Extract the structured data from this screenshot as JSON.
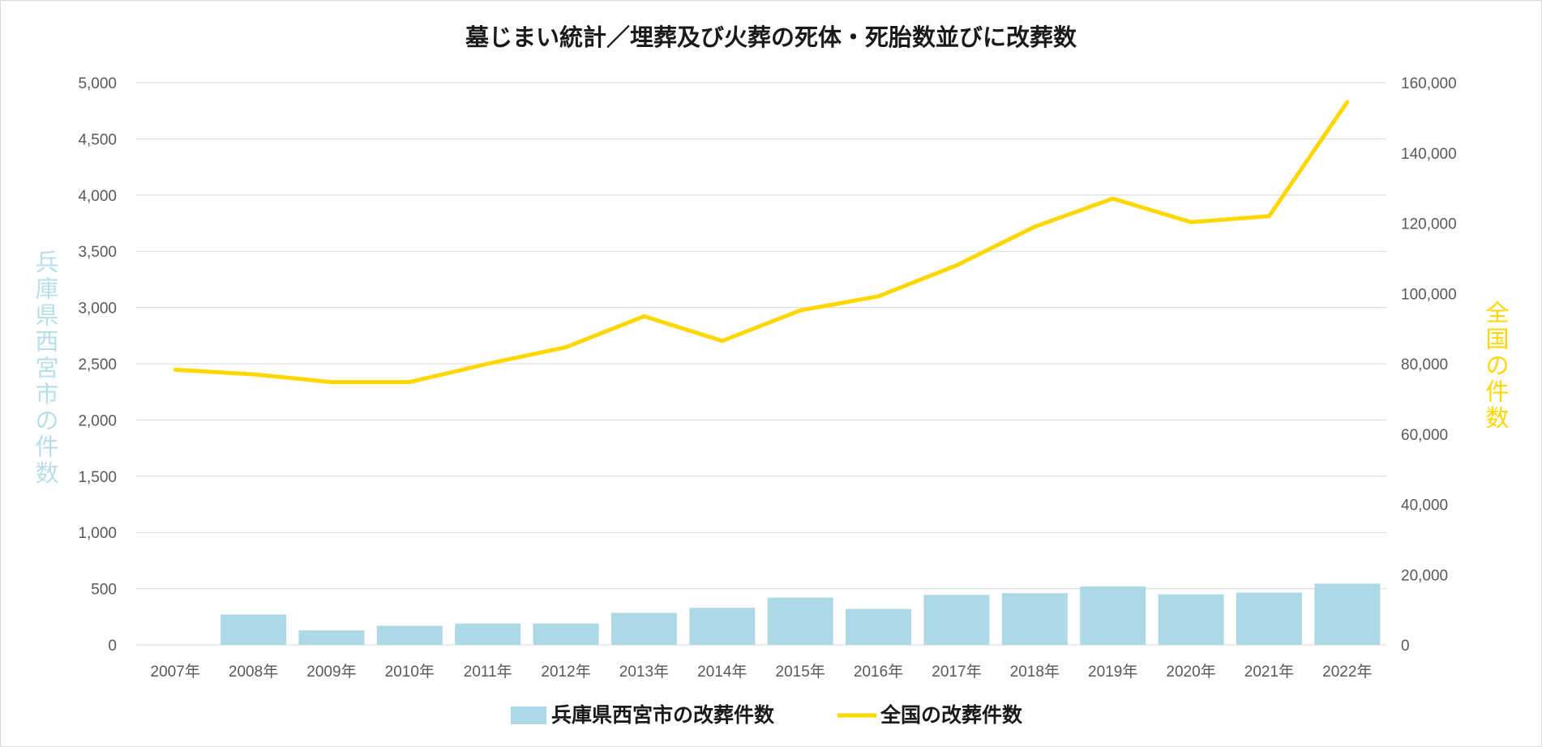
{
  "chart_data": {
    "type": "bar+line",
    "title": "墓じまい統計／埋葬及び火葬の死体・死胎数並びに改葬数",
    "categories": [
      "2007年",
      "2008年",
      "2009年",
      "2010年",
      "2011年",
      "2012年",
      "2013年",
      "2014年",
      "2015年",
      "2016年",
      "2017年",
      "2018年",
      "2019年",
      "2020年",
      "2021年",
      "2022年"
    ],
    "y_left": {
      "label": "兵庫県西宮市の件数",
      "min": 0,
      "max": 5000,
      "step": 500,
      "tick_labels": [
        "0",
        "500",
        "1,000",
        "1,500",
        "2,000",
        "2,500",
        "3,000",
        "3,500",
        "4,000",
        "4,500",
        "5,000"
      ]
    },
    "y_right": {
      "label": "全国の件数",
      "min": 0,
      "max": 160000,
      "step": 20000,
      "tick_labels": [
        "0",
        "20,000",
        "40,000",
        "60,000",
        "80,000",
        "100,000",
        "120,000",
        "140,000",
        "160,000"
      ]
    },
    "series": [
      {
        "name": "兵庫県西宮市の改葬件数",
        "type": "bar",
        "axis": "left",
        "color": "#add8e6",
        "values": [
          0,
          270,
          130,
          170,
          190,
          190,
          285,
          330,
          420,
          320,
          445,
          460,
          520,
          450,
          465,
          545
        ]
      },
      {
        "name": "全国の改葬件数",
        "type": "line",
        "axis": "right",
        "color": "#ffd700",
        "values": [
          78300,
          77000,
          74800,
          74800,
          80000,
          84700,
          93500,
          86500,
          95200,
          99200,
          108000,
          119000,
          127000,
          120300,
          122000,
          154500
        ]
      }
    ],
    "grid": true,
    "legend_position": "bottom"
  },
  "colors": {
    "bar": "#add8e6",
    "line": "#ffd700",
    "left_axis_title": "#b7dfe8",
    "right_axis_title": "#ffd700",
    "grid": "#d9d9d9"
  }
}
